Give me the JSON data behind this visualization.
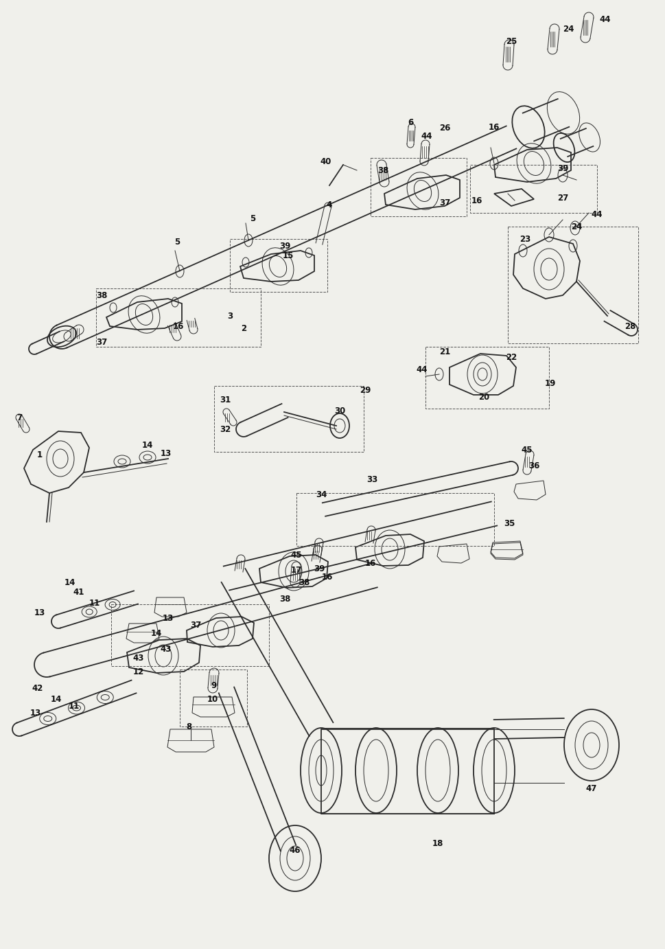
{
  "background_color": "#f0f0eb",
  "line_color": "#2a2a2a",
  "dash_color": "#555555",
  "figsize": [
    9.7,
    13.82
  ],
  "dpi": 100,
  "lw_main": 1.3,
  "lw_thin": 0.7,
  "lw_dash": 0.7,
  "label_fontsize": 8.5,
  "label_fontsize_sm": 7.5,
  "text_color": "#111111"
}
